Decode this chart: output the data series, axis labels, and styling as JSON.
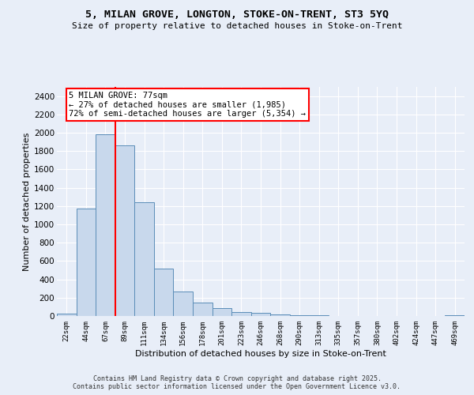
{
  "title": "5, MILAN GROVE, LONGTON, STOKE-ON-TRENT, ST3 5YQ",
  "subtitle": "Size of property relative to detached houses in Stoke-on-Trent",
  "xlabel": "Distribution of detached houses by size in Stoke-on-Trent",
  "ylabel": "Number of detached properties",
  "bins": [
    "22sqm",
    "44sqm",
    "67sqm",
    "89sqm",
    "111sqm",
    "134sqm",
    "156sqm",
    "178sqm",
    "201sqm",
    "223sqm",
    "246sqm",
    "268sqm",
    "290sqm",
    "313sqm",
    "335sqm",
    "357sqm",
    "380sqm",
    "402sqm",
    "424sqm",
    "447sqm",
    "469sqm"
  ],
  "values": [
    25,
    1170,
    1985,
    1860,
    1240,
    515,
    270,
    150,
    90,
    45,
    38,
    15,
    10,
    5,
    3,
    2,
    2,
    1,
    1,
    1,
    10
  ],
  "bar_color": "#c8d8ec",
  "bar_edge_color": "#5b8db8",
  "annotation_text": "5 MILAN GROVE: 77sqm\n← 27% of detached houses are smaller (1,985)\n72% of semi-detached houses are larger (5,354) →",
  "annotation_box_color": "white",
  "annotation_box_edge_color": "red",
  "vline_color": "red",
  "vline_x": 2.5,
  "ylim": [
    0,
    2500
  ],
  "yticks": [
    0,
    200,
    400,
    600,
    800,
    1000,
    1200,
    1400,
    1600,
    1800,
    2000,
    2200,
    2400
  ],
  "background_color": "#e8eef8",
  "grid_color": "white",
  "footer1": "Contains HM Land Registry data © Crown copyright and database right 2025.",
  "footer2": "Contains public sector information licensed under the Open Government Licence v3.0."
}
